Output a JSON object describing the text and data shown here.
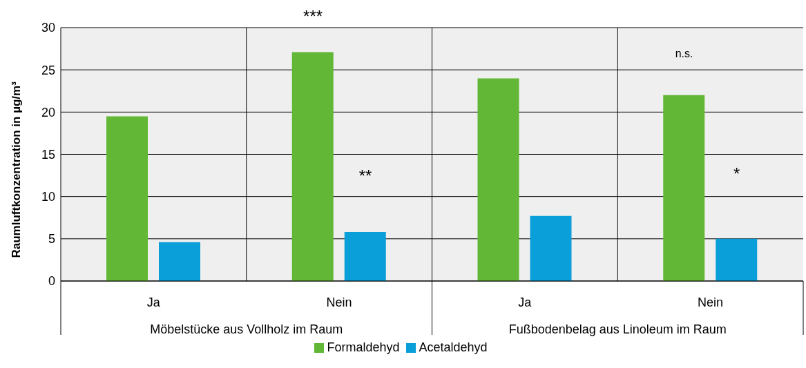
{
  "chart_data": {
    "type": "bar",
    "ylabel": "Raumluftkonzentration in µg/m³",
    "categories": [
      "Ja",
      "Nein",
      "Ja",
      "Nein"
    ],
    "series": [
      {
        "name": "Formaldehyd",
        "color": "#62b836",
        "values": [
          19.5,
          27.1,
          24.0,
          22.0
        ]
      },
      {
        "name": "Acetaldehyd",
        "color": "#0a9fd8",
        "values": [
          4.6,
          5.8,
          7.7,
          5.0
        ]
      }
    ],
    "ylim": [
      0,
      30
    ],
    "yticks": [
      0,
      5,
      10,
      15,
      20,
      25,
      30
    ],
    "grid": true,
    "legend": "bottom",
    "annotations": [
      "***",
      "**",
      "n.s.",
      "*",
      "Möbelstücke aus Vollholz im Raum",
      "Fußbodenbelag aus Linoleum im Raum"
    ]
  }
}
